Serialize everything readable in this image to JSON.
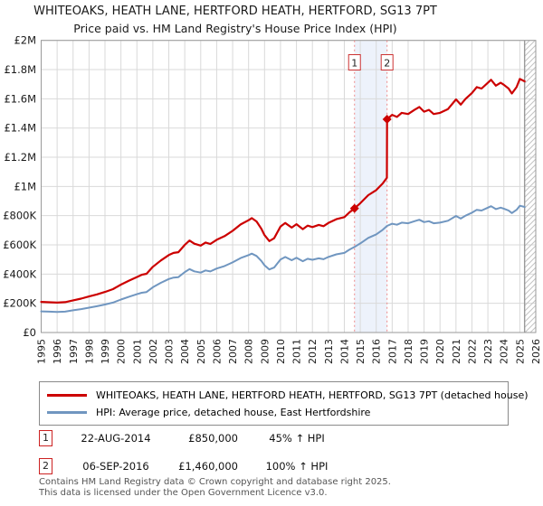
{
  "title": "WHITEOAKS, HEATH LANE, HERTFORD HEATH, HERTFORD, SG13 7PT",
  "subtitle": "Price paid vs. HM Land Registry's House Price Index (HPI)",
  "chart_data": {
    "type": "line",
    "title": "WHITEOAKS, HEATH LANE, HERTFORD HEATH, HERTFORD, SG13 7PT",
    "subtitle": "Price paid vs. HM Land Registry's House Price Index (HPI)",
    "xlim": [
      1995,
      2026
    ],
    "ylim_gbp": [
      0,
      2000000
    ],
    "grid": true,
    "legend_position": "bottom",
    "x_ticks": [
      "1995",
      "1996",
      "1997",
      "1998",
      "1999",
      "2000",
      "2001",
      "2002",
      "2003",
      "2004",
      "2005",
      "2006",
      "2007",
      "2008",
      "2009",
      "2010",
      "2011",
      "2012",
      "2013",
      "2014",
      "2015",
      "2016",
      "2017",
      "2018",
      "2019",
      "2020",
      "2021",
      "2022",
      "2023",
      "2024",
      "2025",
      "2026"
    ],
    "y_ticks": [
      {
        "value": 0,
        "label": "£0"
      },
      {
        "value": 200000,
        "label": "£200K"
      },
      {
        "value": 400000,
        "label": "£400K"
      },
      {
        "value": 600000,
        "label": "£600K"
      },
      {
        "value": 800000,
        "label": "£800K"
      },
      {
        "value": 1000000,
        "label": "£1M"
      },
      {
        "value": 1200000,
        "label": "£1.2M"
      },
      {
        "value": 1400000,
        "label": "£1.4M"
      },
      {
        "value": 1600000,
        "label": "£1.6M"
      },
      {
        "value": 1800000,
        "label": "£1.8M"
      },
      {
        "value": 2000000,
        "label": "£2M"
      }
    ],
    "series": [
      {
        "name": "WHITEOAKS, HEATH LANE, HERTFORD HEATH, HERTFORD, SG13 7PT (detached house)",
        "color": "#cc0000",
        "width": 2.2,
        "points_year_gbpk": [
          [
            1995.0,
            210
          ],
          [
            1995.5,
            207
          ],
          [
            1996.0,
            205
          ],
          [
            1996.5,
            208
          ],
          [
            1997.0,
            220
          ],
          [
            1997.5,
            232
          ],
          [
            1998.0,
            247
          ],
          [
            1998.5,
            261
          ],
          [
            1999.0,
            278
          ],
          [
            1999.5,
            297
          ],
          [
            2000.0,
            328
          ],
          [
            2000.5,
            355
          ],
          [
            2001.0,
            380
          ],
          [
            2001.3,
            395
          ],
          [
            2001.6,
            402
          ],
          [
            2002.0,
            450
          ],
          [
            2002.5,
            493
          ],
          [
            2003.0,
            530
          ],
          [
            2003.3,
            545
          ],
          [
            2003.6,
            550
          ],
          [
            2004.0,
            600
          ],
          [
            2004.3,
            630
          ],
          [
            2004.6,
            608
          ],
          [
            2005.0,
            595
          ],
          [
            2005.3,
            616
          ],
          [
            2005.6,
            606
          ],
          [
            2006.0,
            635
          ],
          [
            2006.5,
            660
          ],
          [
            2007.0,
            696
          ],
          [
            2007.5,
            740
          ],
          [
            2008.0,
            769
          ],
          [
            2008.2,
            783
          ],
          [
            2008.5,
            760
          ],
          [
            2008.8,
            710
          ],
          [
            2009.0,
            667
          ],
          [
            2009.3,
            626
          ],
          [
            2009.6,
            645
          ],
          [
            2010.0,
            725
          ],
          [
            2010.3,
            750
          ],
          [
            2010.7,
            718
          ],
          [
            2011.0,
            742
          ],
          [
            2011.4,
            708
          ],
          [
            2011.7,
            732
          ],
          [
            2012.0,
            722
          ],
          [
            2012.4,
            737
          ],
          [
            2012.7,
            728
          ],
          [
            2013.0,
            750
          ],
          [
            2013.5,
            776
          ],
          [
            2014.0,
            790
          ],
          [
            2014.3,
            820
          ],
          [
            2014.64,
            850
          ],
          [
            2015.0,
            885
          ],
          [
            2015.5,
            940
          ],
          [
            2016.0,
            975
          ],
          [
            2016.4,
            1020
          ],
          [
            2016.67,
            1059
          ],
          [
            2016.68,
            1460
          ],
          [
            2017.0,
            1490
          ],
          [
            2017.3,
            1476
          ],
          [
            2017.6,
            1504
          ],
          [
            2018.0,
            1496
          ],
          [
            2018.4,
            1524
          ],
          [
            2018.7,
            1544
          ],
          [
            2019.0,
            1512
          ],
          [
            2019.3,
            1524
          ],
          [
            2019.6,
            1496
          ],
          [
            2020.0,
            1504
          ],
          [
            2020.5,
            1530
          ],
          [
            2021.0,
            1596
          ],
          [
            2021.3,
            1560
          ],
          [
            2021.6,
            1600
          ],
          [
            2022.0,
            1640
          ],
          [
            2022.3,
            1680
          ],
          [
            2022.6,
            1670
          ],
          [
            2023.0,
            1710
          ],
          [
            2023.2,
            1730
          ],
          [
            2023.5,
            1690
          ],
          [
            2023.8,
            1710
          ],
          [
            2024.0,
            1696
          ],
          [
            2024.3,
            1670
          ],
          [
            2024.5,
            1636
          ],
          [
            2024.8,
            1680
          ],
          [
            2025.0,
            1736
          ],
          [
            2025.3,
            1720
          ]
        ]
      },
      {
        "name": "HPI: Average price, detached house, East Hertfordshire",
        "color": "#7096c0",
        "width": 2,
        "points_year_gbpk": [
          [
            1995.0,
            145
          ],
          [
            1995.5,
            143
          ],
          [
            1996.0,
            141
          ],
          [
            1996.5,
            143
          ],
          [
            1997.0,
            152
          ],
          [
            1997.5,
            160
          ],
          [
            1998.0,
            170
          ],
          [
            1998.5,
            180
          ],
          [
            1999.0,
            192
          ],
          [
            1999.5,
            205
          ],
          [
            2000.0,
            226
          ],
          [
            2000.5,
            245
          ],
          [
            2001.0,
            262
          ],
          [
            2001.3,
            272
          ],
          [
            2001.6,
            277
          ],
          [
            2002.0,
            310
          ],
          [
            2002.5,
            340
          ],
          [
            2003.0,
            366
          ],
          [
            2003.3,
            376
          ],
          [
            2003.6,
            379
          ],
          [
            2004.0,
            414
          ],
          [
            2004.3,
            434
          ],
          [
            2004.6,
            419
          ],
          [
            2005.0,
            410
          ],
          [
            2005.3,
            425
          ],
          [
            2005.6,
            418
          ],
          [
            2006.0,
            438
          ],
          [
            2006.5,
            455
          ],
          [
            2007.0,
            480
          ],
          [
            2007.5,
            510
          ],
          [
            2008.0,
            530
          ],
          [
            2008.2,
            540
          ],
          [
            2008.5,
            524
          ],
          [
            2008.8,
            490
          ],
          [
            2009.0,
            460
          ],
          [
            2009.3,
            432
          ],
          [
            2009.6,
            445
          ],
          [
            2010.0,
            500
          ],
          [
            2010.3,
            517
          ],
          [
            2010.7,
            495
          ],
          [
            2011.0,
            512
          ],
          [
            2011.4,
            488
          ],
          [
            2011.7,
            505
          ],
          [
            2012.0,
            498
          ],
          [
            2012.4,
            508
          ],
          [
            2012.7,
            502
          ],
          [
            2013.0,
            517
          ],
          [
            2013.5,
            535
          ],
          [
            2014.0,
            545
          ],
          [
            2014.3,
            566
          ],
          [
            2014.64,
            586
          ],
          [
            2015.0,
            610
          ],
          [
            2015.5,
            648
          ],
          [
            2016.0,
            672
          ],
          [
            2016.4,
            703
          ],
          [
            2016.68,
            730
          ],
          [
            2017.0,
            745
          ],
          [
            2017.3,
            738
          ],
          [
            2017.6,
            752
          ],
          [
            2018.0,
            748
          ],
          [
            2018.4,
            762
          ],
          [
            2018.7,
            772
          ],
          [
            2019.0,
            756
          ],
          [
            2019.3,
            762
          ],
          [
            2019.6,
            748
          ],
          [
            2020.0,
            752
          ],
          [
            2020.5,
            765
          ],
          [
            2021.0,
            798
          ],
          [
            2021.3,
            780
          ],
          [
            2021.6,
            800
          ],
          [
            2022.0,
            820
          ],
          [
            2022.3,
            840
          ],
          [
            2022.6,
            835
          ],
          [
            2023.0,
            855
          ],
          [
            2023.2,
            865
          ],
          [
            2023.5,
            845
          ],
          [
            2023.8,
            855
          ],
          [
            2024.0,
            848
          ],
          [
            2024.3,
            835
          ],
          [
            2024.5,
            818
          ],
          [
            2024.8,
            840
          ],
          [
            2025.0,
            868
          ],
          [
            2025.3,
            860
          ]
        ]
      }
    ],
    "sale_markers": [
      {
        "label": "1",
        "x": 2014.64,
        "value_gbp": 850000
      },
      {
        "label": "2",
        "x": 2016.68,
        "value_gbp": 1460000
      }
    ],
    "highlight_band": {
      "x1": 2014.64,
      "x2": 2016.68,
      "color": "#edf2fb"
    },
    "future_hatch_start": 2025.3,
    "marker_line_color": "#ee8888",
    "grid_color": "#d9d9d9",
    "border_color": "#9a9a9a"
  },
  "transactions": [
    {
      "label": "1",
      "date": "22-AUG-2014",
      "price": "£850,000",
      "hpi_change": "45% ↑ HPI"
    },
    {
      "label": "2",
      "date": "06-SEP-2016",
      "price": "£1,460,000",
      "hpi_change": "100% ↑ HPI"
    }
  ],
  "footer": {
    "line1": "Contains HM Land Registry data © Crown copyright and database right 2025.",
    "line2": "This data is licensed under the Open Government Licence v3.0."
  }
}
